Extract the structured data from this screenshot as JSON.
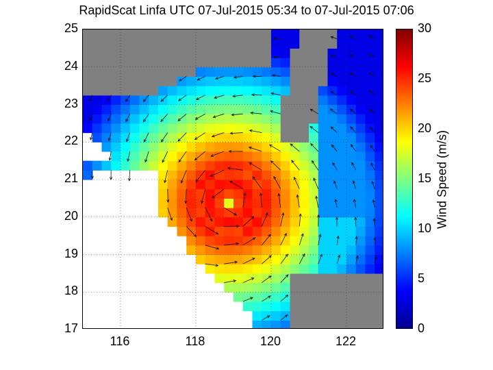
{
  "chart_data": {
    "type": "heatmap",
    "title": "RapidScat Linfa UTC 07-Jul-2015 05:34 to 07-Jul-2015 07:06",
    "xlabel": "",
    "ylabel": "",
    "xlim": [
      115,
      123
    ],
    "ylim": [
      17,
      25
    ],
    "x_ticks": [
      "116",
      "118",
      "120",
      "122"
    ],
    "y_ticks": [
      "17",
      "18",
      "19",
      "20",
      "21",
      "22",
      "23",
      "24",
      "25"
    ],
    "grid": true,
    "colorbar": {
      "label": "Wind Speed (m/s)",
      "range": [
        0,
        30
      ],
      "ticks": [
        "0",
        "5",
        "10",
        "15",
        "20",
        "25",
        "30"
      ],
      "colormap": "jet"
    },
    "storm_center": {
      "lon": 118.9,
      "lat": 20.4
    },
    "max_wind_region": {
      "lon_range": [
        118.5,
        120.3
      ],
      "lat_range": [
        19.8,
        21.0
      ],
      "approx_speed": 27
    },
    "land_color": "#808080",
    "vector_field": "cyclonic (counter-clockwise) wind arrows"
  },
  "labels": {
    "title": "RapidScat Linfa UTC 07-Jul-2015 05:34 to 07-Jul-2015 07:06",
    "colorbar_label": "Wind Speed (m/s)"
  }
}
